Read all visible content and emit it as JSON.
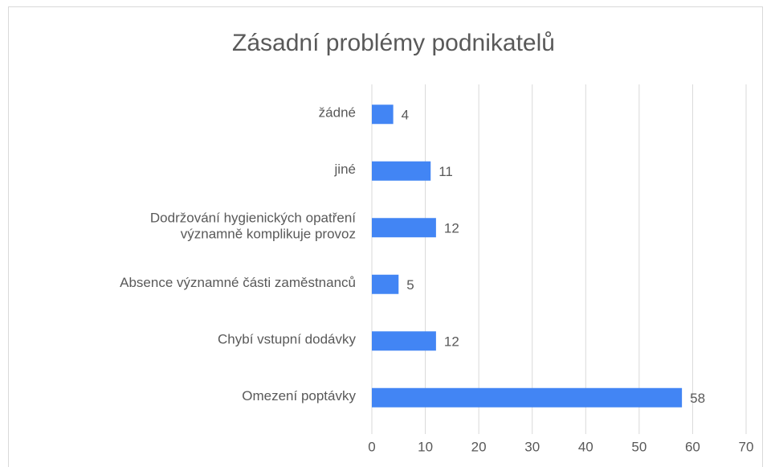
{
  "chart_data": {
    "type": "bar",
    "orientation": "horizontal",
    "title": "Zásadní problémy podnikatelů",
    "categories": [
      "žádné",
      "jiné",
      "Dodržování hygienických opatření\nvýznamně komplikuje provoz",
      "Absence významné části zaměstnanců",
      "Chybí vstupní dodávky",
      "Omezení poptávky"
    ],
    "values": [
      4,
      11,
      12,
      5,
      12,
      58
    ],
    "color": "#4285f4",
    "xlim": [
      0,
      70
    ],
    "xticks": [
      0,
      10,
      20,
      30,
      40,
      50,
      60,
      70
    ],
    "grid": true,
    "data_labels": true
  }
}
